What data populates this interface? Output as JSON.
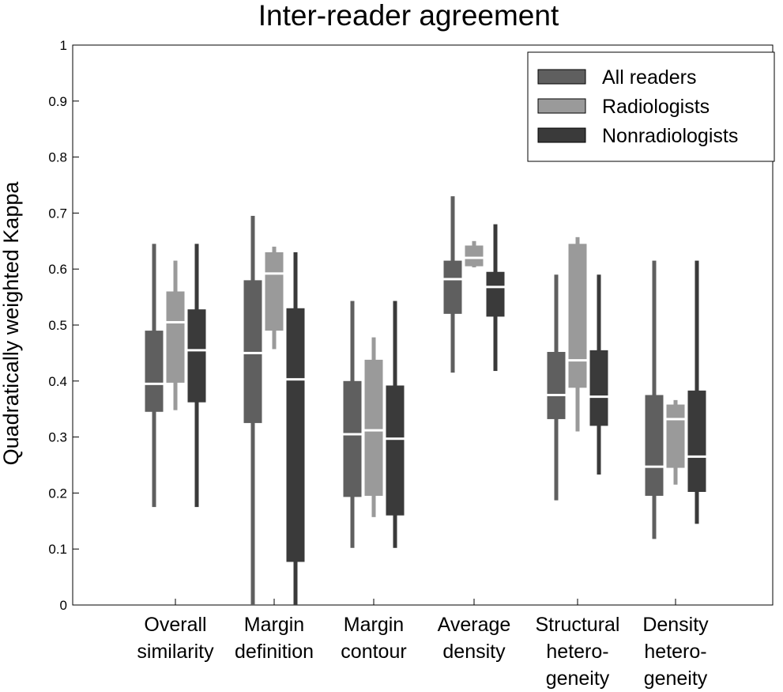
{
  "chart_data": {
    "type": "box",
    "title": "Inter-reader agreement",
    "xlabel": "",
    "ylabel": "Quadratically weighted Kappa",
    "ylim": [
      0,
      1
    ],
    "yticks": [
      "0",
      "0.1",
      "0.2",
      "0.3",
      "0.4",
      "0.5",
      "0.6",
      "0.7",
      "0.8",
      "0.9",
      "1"
    ],
    "grid": false,
    "legend_position": "top-right",
    "categories": [
      [
        "Overall",
        "similarity"
      ],
      [
        "Margin",
        "definition"
      ],
      [
        "Margin",
        "contour"
      ],
      [
        "Average",
        "density"
      ],
      [
        "Structural",
        "hetero-",
        "geneity"
      ],
      [
        "Density",
        "hetero-",
        "geneity"
      ]
    ],
    "series": [
      {
        "name": "All readers",
        "color": "#5f5f5f",
        "boxes": [
          {
            "min": 0.175,
            "q1": 0.345,
            "median": 0.395,
            "q3": 0.49,
            "max": 0.645
          },
          {
            "min": 0.0,
            "q1": 0.325,
            "median": 0.45,
            "q3": 0.58,
            "max": 0.695
          },
          {
            "min": 0.102,
            "q1": 0.193,
            "median": 0.305,
            "q3": 0.4,
            "max": 0.543
          },
          {
            "min": 0.415,
            "q1": 0.52,
            "median": 0.582,
            "q3": 0.615,
            "max": 0.73
          },
          {
            "min": 0.187,
            "q1": 0.332,
            "median": 0.375,
            "q3": 0.452,
            "max": 0.59
          },
          {
            "min": 0.118,
            "q1": 0.195,
            "median": 0.247,
            "q3": 0.375,
            "max": 0.615
          }
        ]
      },
      {
        "name": "Radiologists",
        "color": "#9a9a9a",
        "boxes": [
          {
            "min": 0.348,
            "q1": 0.397,
            "median": 0.505,
            "q3": 0.56,
            "max": 0.615
          },
          {
            "min": 0.457,
            "q1": 0.49,
            "median": 0.592,
            "q3": 0.63,
            "max": 0.64
          },
          {
            "min": 0.157,
            "q1": 0.195,
            "median": 0.312,
            "q3": 0.438,
            "max": 0.478
          },
          {
            "min": 0.603,
            "q1": 0.605,
            "median": 0.62,
            "q3": 0.642,
            "max": 0.65
          },
          {
            "min": 0.31,
            "q1": 0.388,
            "median": 0.437,
            "q3": 0.645,
            "max": 0.657
          },
          {
            "min": 0.215,
            "q1": 0.245,
            "median": 0.332,
            "q3": 0.358,
            "max": 0.366
          }
        ]
      },
      {
        "name": "Nonradiologists",
        "color": "#3a3a3a",
        "boxes": [
          {
            "min": 0.175,
            "q1": 0.362,
            "median": 0.455,
            "q3": 0.528,
            "max": 0.645
          },
          {
            "min": 0.0,
            "q1": 0.077,
            "median": 0.403,
            "q3": 0.53,
            "max": 0.63
          },
          {
            "min": 0.102,
            "q1": 0.16,
            "median": 0.297,
            "q3": 0.392,
            "max": 0.543
          },
          {
            "min": 0.418,
            "q1": 0.515,
            "median": 0.568,
            "q3": 0.595,
            "max": 0.68
          },
          {
            "min": 0.233,
            "q1": 0.32,
            "median": 0.372,
            "q3": 0.455,
            "max": 0.59
          },
          {
            "min": 0.145,
            "q1": 0.202,
            "median": 0.265,
            "q3": 0.383,
            "max": 0.615
          }
        ]
      }
    ]
  }
}
